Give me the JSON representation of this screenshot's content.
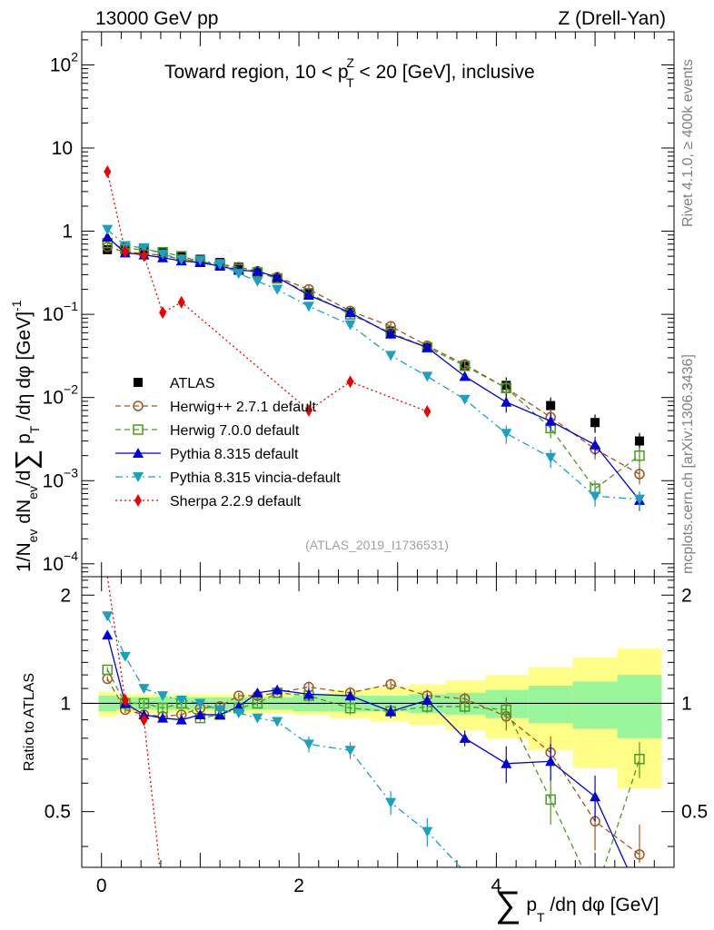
{
  "header": {
    "left": "13000 GeV pp",
    "right": "Z (Drell-Yan)"
  },
  "side_labels": {
    "rivet": "Rivet 4.1.0, ≥ 400k events",
    "mcplots": "mcplots.cern.ch [arXiv:1306.3436]"
  },
  "watermark": "(ATLAS_2019_I1736531)",
  "chart_data": {
    "type": "line",
    "title": "Toward region, 10 < p_T^Z < 20 [GeV], inclusive",
    "title_parts": {
      "a": "Toward region, 10 < p",
      "sub": "T",
      "sup": "Z",
      "b": " < 20 [GeV], inclusive"
    },
    "ylabel": "1/N_ev dN_ev/d∑ p_T /dη dφ [GeV]^-1",
    "ylabel_parts": {
      "a": "1/N",
      "ev": "ev",
      "b": " dN",
      "c": "/d",
      "sum": "∑",
      "d": " p",
      "T": "T",
      "e": " /dη dφ  [GeV]",
      "exp": "-1"
    },
    "xlabel": "∑ p_T /dη dφ [GeV]",
    "xlabel_parts": {
      "sum": "∑",
      "a": " p",
      "T": "T",
      "b": " /dη dφ [GeV]"
    },
    "ratio_ylabel": "Ratio to ATLAS",
    "xlim": [
      -0.2,
      5.8
    ],
    "ylim_main": [
      7e-05,
      250
    ],
    "ylim_ratio": [
      0.35,
      2.25
    ],
    "x_ticks": [
      0,
      2,
      4
    ],
    "x_tick_labels": [
      "0",
      "2",
      "4"
    ],
    "y_ticks_main": [
      0.0001,
      0.001,
      0.01,
      0.1,
      1,
      10,
      100
    ],
    "y_tick_labels_main": [
      {
        "base": "10",
        "exp": "−4"
      },
      {
        "base": "10",
        "exp": "−3"
      },
      {
        "base": "10",
        "exp": "−2"
      },
      {
        "base": "10",
        "exp": "−1"
      },
      {
        "base": "1",
        "exp": ""
      },
      {
        "base": "10",
        "exp": ""
      },
      {
        "base": "10",
        "exp": "2"
      }
    ],
    "y_ticks_ratio": [
      0.5,
      1,
      2
    ],
    "y_tick_labels_ratio": [
      "0.5",
      "1",
      "2"
    ],
    "x": [
      0.06,
      0.24,
      0.43,
      0.62,
      0.81,
      1.0,
      1.2,
      1.39,
      1.58,
      1.78,
      2.1,
      2.52,
      2.93,
      3.3,
      3.68,
      4.1,
      4.55,
      5.0,
      5.45
    ],
    "series": [
      {
        "name": "ATLAS",
        "color": "#000000",
        "marker": "square-filled",
        "dash": "none",
        "values": [
          0.6,
          0.6,
          0.58,
          0.55,
          0.5,
          0.46,
          0.42,
          0.37,
          0.32,
          0.27,
          0.18,
          0.105,
          0.063,
          0.04,
          0.024,
          0.014,
          0.008,
          0.005,
          0.003
        ],
        "ratio": [
          1,
          1,
          1,
          1,
          1,
          1,
          1,
          1,
          1,
          1,
          1,
          1,
          1,
          1,
          1,
          1,
          1,
          1,
          1
        ]
      },
      {
        "name": "Herwig++ 2.7.1 default",
        "color": "#a0561e",
        "marker": "circle-open",
        "dash": "6,4",
        "values": [
          0.65,
          0.56,
          0.54,
          0.51,
          0.46,
          0.43,
          0.4,
          0.37,
          0.33,
          0.28,
          0.2,
          0.11,
          0.072,
          0.042,
          0.025,
          0.013,
          0.0058,
          0.0024,
          0.0012
        ],
        "ratio": [
          1.17,
          0.96,
          0.93,
          0.92,
          0.93,
          0.97,
          0.98,
          1.05,
          1.05,
          1.07,
          1.11,
          1.07,
          1.13,
          1.05,
          1.03,
          0.92,
          0.73,
          0.47,
          0.38
        ]
      },
      {
        "name": "Herwig 7.0.0 default",
        "color": "#4b9a22",
        "marker": "square-open",
        "dash": "6,4",
        "values": [
          0.72,
          0.62,
          0.6,
          0.56,
          0.5,
          0.43,
          0.4,
          0.35,
          0.32,
          0.27,
          0.18,
          0.1,
          0.06,
          0.04,
          0.024,
          0.013,
          0.0043,
          0.0008,
          0.002
        ],
        "ratio": [
          1.24,
          1.0,
          1.0,
          0.97,
          1.0,
          0.91,
          0.93,
          0.97,
          1.0,
          1.07,
          1.05,
          0.97,
          0.95,
          0.98,
          0.98,
          0.96,
          0.54,
          0.18,
          0.7
        ]
      },
      {
        "name": "Pythia 8.315 default",
        "color": "#0000dd",
        "marker": "triangle-up",
        "dash": "none",
        "values": [
          0.85,
          0.55,
          0.52,
          0.48,
          0.44,
          0.42,
          0.38,
          0.34,
          0.33,
          0.28,
          0.17,
          0.105,
          0.058,
          0.04,
          0.018,
          0.0088,
          0.0052,
          0.0027,
          0.00058
        ],
        "ratio": [
          1.55,
          1.0,
          0.93,
          0.91,
          0.9,
          0.93,
          0.93,
          0.98,
          1.07,
          1.09,
          1.06,
          1.05,
          0.95,
          1.02,
          0.8,
          0.68,
          0.69,
          0.55,
          0.22
        ]
      },
      {
        "name": "Pythia 8.315 vincia-default",
        "color": "#1aa0c0",
        "marker": "triangle-down",
        "dash": "8,4,2,4",
        "values": [
          1.05,
          0.67,
          0.63,
          0.53,
          0.46,
          0.45,
          0.4,
          0.31,
          0.25,
          0.2,
          0.125,
          0.075,
          0.032,
          0.018,
          0.0095,
          0.0037,
          0.0019,
          0.00065,
          0.0006
        ],
        "ratio": [
          1.75,
          1.35,
          1.1,
          1.05,
          1.02,
          1.0,
          0.96,
          0.94,
          0.91,
          0.89,
          0.77,
          0.74,
          0.53,
          0.44,
          0.34,
          0.25,
          0.24,
          0.13,
          0.2
        ]
      },
      {
        "name": "Sherpa 2.2.9 default",
        "color": "#ee0000",
        "marker": "diamond",
        "dash": "2,3",
        "values": [
          5.2,
          0.57,
          0.51,
          0.105,
          0.14,
          null,
          null,
          null,
          null,
          null,
          0.007,
          0.0155,
          null,
          0.0068,
          null,
          null,
          null,
          null,
          null
        ],
        "ratio": [
          8.7,
          1.02,
          0.9,
          0.2,
          0.28,
          null,
          null,
          null,
          null,
          null,
          0.04,
          0.15,
          null,
          0.17,
          null,
          null,
          null,
          null,
          null
        ]
      }
    ],
    "uncertainty_band": {
      "inner": [
        0.05,
        0.04,
        0.04,
        0.04,
        0.04,
        0.04,
        0.04,
        0.04,
        0.04,
        0.04,
        0.05,
        0.05,
        0.05,
        0.06,
        0.07,
        0.09,
        0.12,
        0.15,
        0.2
      ],
      "outer": [
        0.08,
        0.06,
        0.06,
        0.06,
        0.06,
        0.06,
        0.06,
        0.06,
        0.06,
        0.06,
        0.07,
        0.09,
        0.11,
        0.13,
        0.16,
        0.2,
        0.26,
        0.34,
        0.42
      ],
      "inner_color": "#99f599",
      "outer_color": "#ffff88"
    }
  }
}
